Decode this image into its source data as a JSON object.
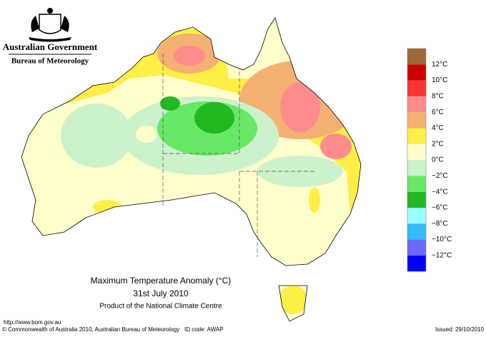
{
  "header": {
    "title": "Australian Government",
    "subtitle": "Bureau of Meteorology"
  },
  "map": {
    "title": "Maximum Temperature Anomaly (°C)",
    "date": "31st July 2010",
    "producer": "Product of the National Climate Centre"
  },
  "legend": {
    "colors": [
      "#9c6a3a",
      "#cc0000",
      "#ff3333",
      "#ff8c8c",
      "#f5b074",
      "#ffee44",
      "#ffffcc",
      "#ccf2cc",
      "#66e866",
      "#22b822",
      "#99ffff",
      "#33bbff",
      "#6a6aff",
      "#0000ff"
    ],
    "labels": [
      "12°C",
      "10°C",
      "8°C",
      "6°C",
      "4°C",
      "2°C",
      "0°C",
      "−2°C",
      "−4°C",
      "−6°C",
      "−8°C",
      "−10°C",
      "−12°C"
    ]
  },
  "footer": {
    "url": "http://www.bom.gov.au",
    "copyright": "© Commonwealth of Australia 2010, Australian Bureau of Meteorology",
    "id_code": "ID code: AWAP",
    "issued": "Issued: 29/10/2010"
  }
}
